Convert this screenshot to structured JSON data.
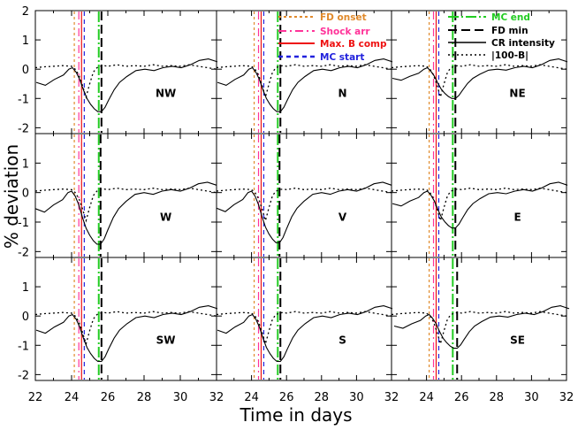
{
  "chart_data": {
    "type": "line",
    "xlabel": "Time in days",
    "ylabel": "% deviation",
    "xlim": [
      22,
      32
    ],
    "ylim": [
      -2.2,
      2.0
    ],
    "x_ticks": [
      "22",
      "24",
      "26",
      "28",
      "30",
      "32"
    ],
    "y_ticks_top": [
      "2",
      "1",
      "0",
      "-1",
      "-2"
    ],
    "y_ticks_other": [
      "1",
      "0",
      "-1",
      "-2"
    ],
    "panels": [
      {
        "label": "NW",
        "fd_min": 25.65,
        "cr_min": -1.45
      },
      {
        "label": "N",
        "fd_min": 25.65,
        "cr_min": -1.45
      },
      {
        "label": "NE",
        "fd_min": 25.65,
        "cr_min": -1.0
      },
      {
        "label": "W",
        "fd_min": 25.6,
        "cr_min": -1.75
      },
      {
        "label": "V",
        "fd_min": 25.6,
        "cr_min": -1.7
      },
      {
        "label": "E",
        "fd_min": 25.65,
        "cr_min": -1.2
      },
      {
        "label": "SW",
        "fd_min": 25.65,
        "cr_min": -1.55
      },
      {
        "label": "S",
        "fd_min": 25.65,
        "cr_min": -1.55
      },
      {
        "label": "SE",
        "fd_min": 25.75,
        "cr_min": -1.1
      }
    ],
    "event_times": {
      "fd_onset": 24.15,
      "shock_arr": 24.4,
      "max_b_comp": 24.55,
      "mc_start": 24.7,
      "mc_end": 25.5
    },
    "cr_curve": {
      "x": [
        22,
        22.5,
        23,
        23.5,
        23.8,
        24.0,
        24.2,
        24.4,
        24.6,
        24.8,
        25.0,
        25.2,
        25.4,
        25.6,
        25.8,
        26.0,
        26.3,
        26.6,
        27.0,
        27.5,
        28.0,
        28.5,
        29.0,
        29.5,
        30.0,
        30.5,
        31.0,
        31.5,
        32.0
      ],
      "y": [
        -0.45,
        -0.55,
        -0.35,
        -0.2,
        0.0,
        0.05,
        -0.1,
        -0.35,
        -0.7,
        -1.0,
        -1.2,
        -1.35,
        -1.45,
        -1.45,
        -1.3,
        -1.05,
        -0.7,
        -0.45,
        -0.25,
        -0.05,
        0.0,
        -0.05,
        0.05,
        0.1,
        0.05,
        0.15,
        0.3,
        0.35,
        0.25
      ]
    },
    "b_curve": {
      "x": [
        22,
        22.5,
        23,
        23.5,
        24.0,
        24.2,
        24.4,
        24.6,
        24.8,
        25.0,
        25.2,
        25.4,
        25.6,
        25.8,
        26.0,
        26.5,
        27.0,
        27.5,
        28.0,
        28.5,
        29.0,
        29.5,
        30.0,
        30.5,
        31.0,
        31.5,
        32.0
      ],
      "y": [
        0.05,
        0.08,
        0.1,
        0.12,
        0.1,
        0.0,
        -0.2,
        -0.55,
        -0.95,
        -0.5,
        -0.1,
        0.05,
        0.1,
        0.12,
        0.1,
        0.15,
        0.1,
        0.12,
        0.1,
        0.15,
        0.1,
        0.12,
        0.1,
        0.15,
        0.1,
        0.05,
        0.0
      ]
    }
  },
  "legend": {
    "fd_onset": "FD onset",
    "shock_arr": "Shock arr",
    "max_b_comp": "Max. B comp",
    "mc_start": "MC start",
    "mc_end": "MC end",
    "fd_min": "FD min",
    "cr_intensity": "CR intensity",
    "b_dev": "|100-B|"
  },
  "colors": {
    "fd_onset": "#e08a2c",
    "shock_arr": "#ff3399",
    "max_b_comp": "#ee1111",
    "mc_start": "#2222dd",
    "mc_end": "#22cc22",
    "fd_min": "#000000",
    "cr": "#000000"
  }
}
